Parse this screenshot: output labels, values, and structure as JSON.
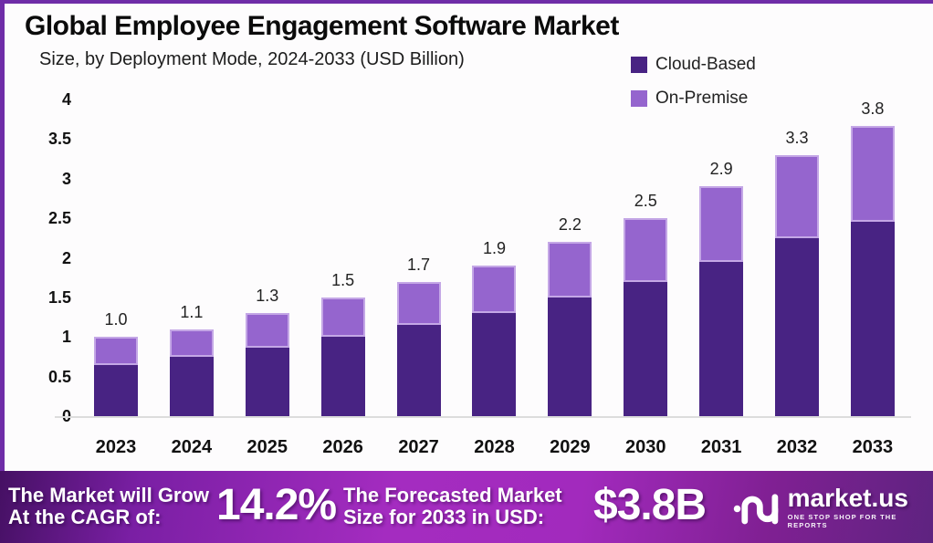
{
  "header": {
    "title": "Global Employee Engagement Software Market",
    "subtitle": "Size, by Deployment Mode, 2024-2033 (USD Billion)"
  },
  "legend": {
    "items": [
      {
        "label": "Cloud-Based",
        "color": "#482383"
      },
      {
        "label": "On-Premise",
        "color": "#9565ce"
      }
    ]
  },
  "chart_data": {
    "type": "bar",
    "stacked": true,
    "title": "Global Employee Engagement Software Market",
    "subtitle": "Size, by Deployment Mode, 2024-2033 (USD Billion)",
    "categories": [
      "2023",
      "2024",
      "2025",
      "2026",
      "2027",
      "2028",
      "2029",
      "2030",
      "2031",
      "2032",
      "2033"
    ],
    "series": [
      {
        "name": "Cloud-Based",
        "color": "#482383",
        "values": [
          0.65,
          0.75,
          0.87,
          1.0,
          1.15,
          1.3,
          1.5,
          1.7,
          1.95,
          2.25,
          2.55
        ]
      },
      {
        "name": "On-Premise",
        "color": "#9565ce",
        "values": [
          0.35,
          0.35,
          0.43,
          0.5,
          0.55,
          0.6,
          0.7,
          0.8,
          0.95,
          1.05,
          1.25
        ]
      }
    ],
    "totals": [
      1.0,
      1.1,
      1.3,
      1.5,
      1.7,
      1.9,
      2.2,
      2.5,
      2.9,
      3.3,
      3.8
    ],
    "total_labels": [
      "1.0",
      "1.1",
      "1.3",
      "1.5",
      "1.7",
      "1.9",
      "2.2",
      "2.5",
      "2.9",
      "3.3",
      "3.8"
    ],
    "ylim": [
      0,
      4
    ],
    "y_ticks": [
      "0",
      "0.5",
      "1",
      "1.5",
      "2",
      "2.5",
      "3",
      "3.5",
      "4"
    ],
    "xlabel": "",
    "ylabel": "",
    "grid": false,
    "legend_position": "top-right"
  },
  "banner": {
    "left_line1": "The Market will Grow",
    "left_line2": "At the CAGR of:",
    "cagr_value": "14.2%",
    "mid_line1": "The Forecasted Market",
    "mid_line2": "Size for 2033 in USD:",
    "forecast_value": "$3.8B",
    "logo_text": "market.us",
    "logo_tagline": "ONE STOP SHOP FOR THE REPORTS"
  },
  "colors": {
    "cloud": "#482383",
    "on_premise": "#9565ce",
    "frame_border": "#6f2da8",
    "banner_start": "#451063",
    "banner_mid": "#a42cc0",
    "banner_end": "#5e2380",
    "baseline": "#dcdcdc"
  }
}
